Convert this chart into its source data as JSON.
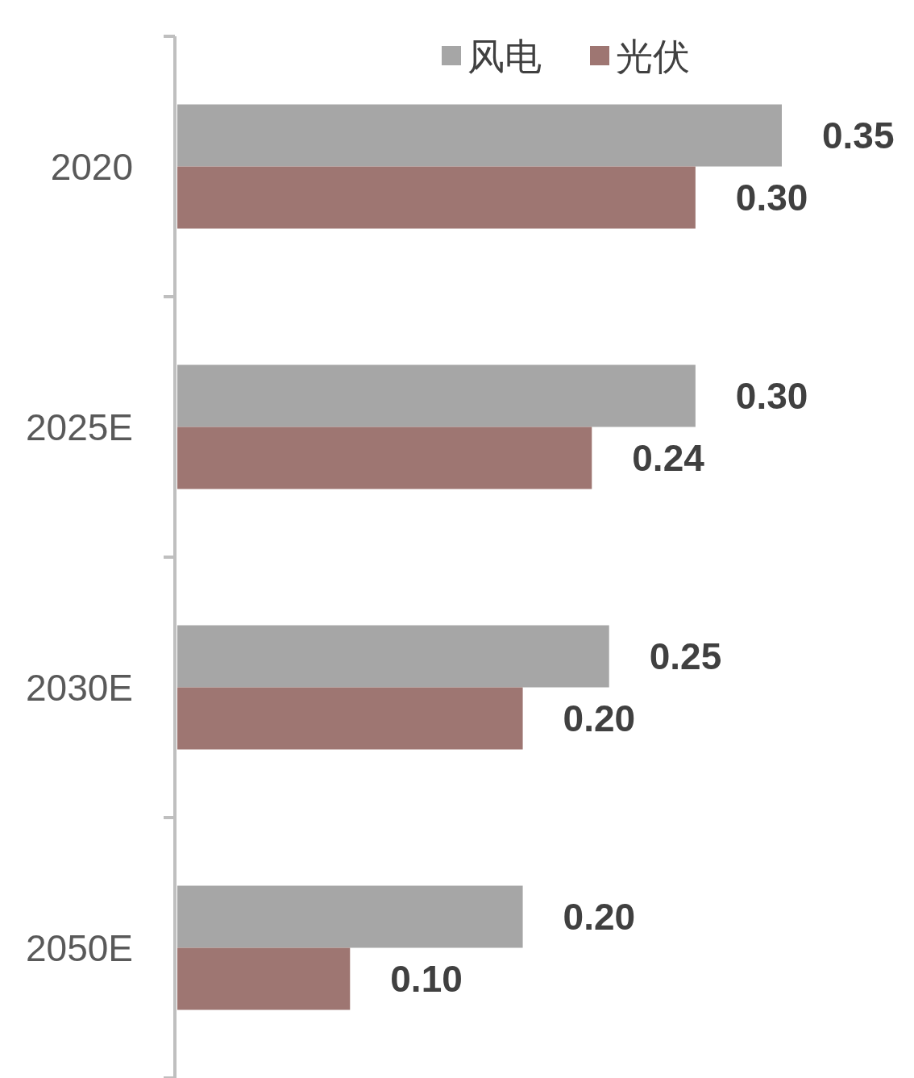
{
  "chart_data": {
    "type": "bar",
    "orientation": "horizontal",
    "categories": [
      "2020",
      "2025E",
      "2030E",
      "2050E"
    ],
    "series": [
      {
        "name": "风电",
        "color": "#a6a6a6",
        "values": [
          0.35,
          0.3,
          0.25,
          0.2
        ],
        "value_labels": [
          "0.35",
          "0.30",
          "0.25",
          "0.20"
        ]
      },
      {
        "name": "光伏",
        "color": "#9e7672",
        "values": [
          0.3,
          0.24,
          0.2,
          0.1
        ],
        "value_labels": [
          "0.30",
          "0.24",
          "0.20",
          "0.10"
        ]
      }
    ],
    "legend": "top"
  }
}
